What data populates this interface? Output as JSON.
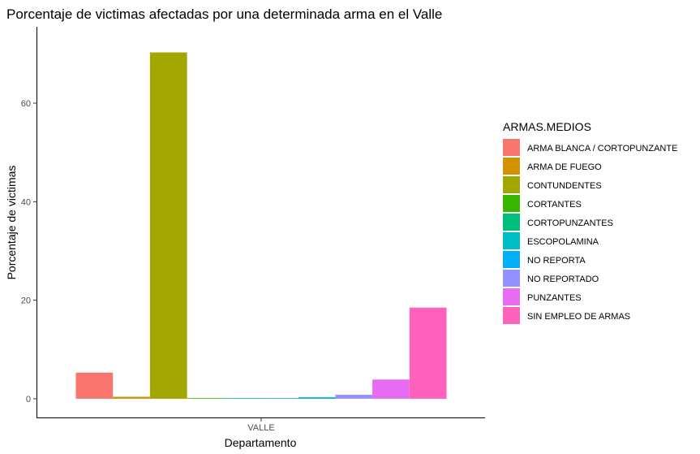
{
  "chart_data": {
    "type": "bar",
    "title": "Porcentaje de victimas afectadas por una determinada arma en el Valle",
    "xlabel": "Departamento",
    "ylabel": "Porcentaje de victimas",
    "categories": [
      "VALLE"
    ],
    "yticks": [
      "0",
      "20",
      "40",
      "60"
    ],
    "ylim": [
      -3.8,
      75.5
    ],
    "grid": false,
    "legend": {
      "title": "ARMAS.MEDIOS",
      "position": "right"
    },
    "series": [
      {
        "name": "ARMA BLANCA / CORTOPUNZANTE",
        "color": "#F8766D",
        "values": [
          5.3
        ]
      },
      {
        "name": "ARMA DE FUEGO",
        "color": "#D39200",
        "values": [
          0.4
        ]
      },
      {
        "name": "CONTUNDENTES",
        "color": "#A3A500",
        "values": [
          70.3
        ]
      },
      {
        "name": "CORTANTES",
        "color": "#39B600",
        "values": [
          0.1
        ]
      },
      {
        "name": "CORTOPUNZANTES",
        "color": "#00BF7D",
        "values": [
          0.1
        ]
      },
      {
        "name": "ESCOPOLAMINA",
        "color": "#00BFC4",
        "values": [
          0.1
        ]
      },
      {
        "name": "NO REPORTA",
        "color": "#00B0F6",
        "values": [
          0.3
        ]
      },
      {
        "name": "NO REPORTADO",
        "color": "#9590FF",
        "values": [
          0.8
        ]
      },
      {
        "name": "PUNZANTES",
        "color": "#E76BF3",
        "values": [
          3.9
        ]
      },
      {
        "name": "SIN EMPLEO DE ARMAS",
        "color": "#FF62BC",
        "values": [
          18.5
        ]
      }
    ]
  }
}
